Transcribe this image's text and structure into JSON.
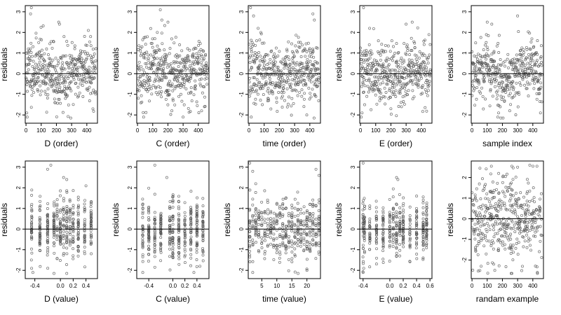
{
  "colors": {
    "points": "#555555",
    "frame": "#000000",
    "background": "#ffffff"
  },
  "chart_data": [
    {
      "type": "scatter",
      "xlabel": "D (order)",
      "ylabel": "residuals",
      "xlim": [
        -5,
        470
      ],
      "ylim": [
        -2.4,
        3.3
      ],
      "xticks": [
        0,
        100,
        200,
        300,
        400
      ],
      "yticks": [
        -2,
        -1,
        0,
        1,
        2,
        3
      ],
      "hline": 0,
      "seed": 11,
      "mode": "order",
      "curve": 0.35,
      "spread": 0.75,
      "outliers": [
        [
          5,
          -1.9
        ],
        [
          8,
          -2.1
        ],
        [
          30,
          2.9
        ],
        [
          35,
          3.2
        ],
        [
          215,
          2.5
        ],
        [
          220,
          2.4
        ],
        [
          250,
          1.8
        ],
        [
          410,
          2.1
        ],
        [
          425,
          1.8
        ]
      ]
    },
    {
      "type": "scatter",
      "xlabel": "C (order)",
      "ylabel": "residuals",
      "xlim": [
        -5,
        470
      ],
      "ylim": [
        -2.4,
        3.3
      ],
      "xticks": [
        0,
        100,
        200,
        300,
        400
      ],
      "yticks": [
        -2,
        -1,
        0,
        1,
        2,
        3
      ],
      "hline": 0,
      "seed": 23,
      "mode": "order",
      "curve": 0.2,
      "spread": 0.75,
      "outliers": [
        [
          40,
          -2.1
        ],
        [
          150,
          3.1
        ],
        [
          160,
          2.6
        ],
        [
          200,
          2.5
        ],
        [
          300,
          -2.1
        ],
        [
          440,
          -1.6
        ],
        [
          130,
          2.0
        ]
      ]
    },
    {
      "type": "scatter",
      "xlabel": "time (order)",
      "ylabel": "residuals",
      "xlim": [
        -5,
        470
      ],
      "ylim": [
        -2.4,
        3.3
      ],
      "xticks": [
        0,
        100,
        200,
        300,
        400
      ],
      "yticks": [
        -2,
        -1,
        0,
        1,
        2,
        3
      ],
      "hline": 0,
      "seed": 37,
      "mode": "order",
      "curve": 0.15,
      "spread": 0.75,
      "outliers": [
        [
          10,
          3.2
        ],
        [
          30,
          2.8
        ],
        [
          60,
          2.2
        ],
        [
          420,
          2.9
        ],
        [
          430,
          2.6
        ],
        [
          15,
          -2.1
        ],
        [
          380,
          -2.0
        ]
      ]
    },
    {
      "type": "scatter",
      "xlabel": "E (order)",
      "ylabel": "residuals",
      "xlim": [
        -5,
        470
      ],
      "ylim": [
        -2.4,
        3.3
      ],
      "xticks": [
        0,
        100,
        200,
        300,
        400
      ],
      "yticks": [
        -2,
        -1,
        0,
        1,
        2,
        3
      ],
      "hline": 0,
      "seed": 41,
      "mode": "order",
      "curve": 0.25,
      "spread": 0.75,
      "outliers": [
        [
          20,
          3.2
        ],
        [
          5,
          -2.1
        ],
        [
          10,
          -1.9
        ],
        [
          300,
          2.4
        ],
        [
          340,
          2.5
        ],
        [
          60,
          2.2
        ]
      ]
    },
    {
      "type": "scatter",
      "xlabel": "sample index",
      "ylabel": "residuals",
      "xlim": [
        -5,
        470
      ],
      "ylim": [
        -2.4,
        3.3
      ],
      "xticks": [
        0,
        100,
        200,
        300,
        400
      ],
      "yticks": [
        -2,
        -1,
        0,
        1,
        2,
        3
      ],
      "hline": 0,
      "seed": 53,
      "mode": "order",
      "curve": 0.3,
      "spread": 0.75,
      "outliers": [
        [
          100,
          2.5
        ],
        [
          130,
          2.4
        ],
        [
          170,
          -2.1
        ],
        [
          175,
          -1.9
        ],
        [
          450,
          -1.9
        ],
        [
          300,
          2.8
        ]
      ]
    },
    {
      "type": "scatter",
      "xlabel": "D (value)",
      "ylabel": "residuals",
      "xlim": [
        -0.55,
        0.58
      ],
      "ylim": [
        -2.4,
        3.3
      ],
      "xticks": [
        -0.4,
        0,
        0.2,
        0.4
      ],
      "xticklabels": [
        "-0.4",
        "0.0",
        "0.2",
        "0.4"
      ],
      "yticks": [
        -2,
        -1,
        0,
        1,
        2,
        3
      ],
      "hline": 0,
      "seed": 67,
      "mode": "discrete",
      "levels": [
        -0.45,
        -0.32,
        -0.2,
        -0.1,
        -0.05,
        0,
        0.05,
        0.1,
        0.15,
        0.2,
        0.28,
        0.38,
        0.48
      ],
      "spread": 0.7,
      "outliers": [
        [
          -0.45,
          -1.9
        ],
        [
          -0.43,
          -2.1
        ],
        [
          -0.2,
          2.9
        ],
        [
          -0.15,
          3.1
        ],
        [
          0.05,
          2.5
        ],
        [
          0.1,
          2.4
        ],
        [
          0.4,
          2.1
        ]
      ]
    },
    {
      "type": "scatter",
      "xlabel": "C (value)",
      "ylabel": "residuals",
      "xlim": [
        -0.6,
        0.6
      ],
      "ylim": [
        -2.4,
        3.3
      ],
      "xticks": [
        -0.4,
        0,
        0.2,
        0.4
      ],
      "xticklabels": [
        "-0.4",
        "0.0",
        "0.2",
        "0.4"
      ],
      "yticks": [
        -2,
        -1,
        0,
        1,
        2,
        3
      ],
      "hline": 0,
      "seed": 79,
      "mode": "discrete",
      "levels": [
        -0.5,
        -0.4,
        -0.3,
        -0.2,
        -0.05,
        0,
        0.1,
        0.2,
        0.3,
        0.4,
        0.5
      ],
      "spread": 0.75,
      "outliers": [
        [
          -0.5,
          -2.1
        ],
        [
          -0.3,
          3.1
        ],
        [
          -0.1,
          2.5
        ],
        [
          0.35,
          -2.1
        ],
        [
          0.45,
          -1.8
        ]
      ]
    },
    {
      "type": "scatter",
      "xlabel": "time (value)",
      "ylabel": "residuals",
      "xlim": [
        0.5,
        24.5
      ],
      "ylim": [
        -2.4,
        3.3
      ],
      "xticks": [
        5,
        10,
        15,
        20
      ],
      "yticks": [
        -2,
        -1,
        0,
        1,
        2,
        3
      ],
      "hline": 0,
      "seed": 83,
      "mode": "discrete",
      "levels": [
        1,
        2,
        3,
        4,
        5,
        6,
        7,
        8,
        9,
        10,
        11,
        12,
        13,
        14,
        15,
        16,
        17,
        18,
        19,
        20,
        21,
        22,
        23,
        24
      ],
      "spread": 0.75,
      "outliers": [
        [
          1,
          3.2
        ],
        [
          2,
          2.8
        ],
        [
          3,
          2.2
        ],
        [
          23,
          2.9
        ],
        [
          24,
          2.6
        ],
        [
          2,
          -2.1
        ],
        [
          20,
          -2.0
        ]
      ]
    },
    {
      "type": "scatter",
      "xlabel": "E (value)",
      "ylabel": "residuals",
      "xlim": [
        -0.45,
        0.63
      ],
      "ylim": [
        -2.4,
        3.3
      ],
      "xticks": [
        -0.4,
        0,
        0.2,
        0.4,
        0.6
      ],
      "xticklabels": [
        "-0.4",
        "0.0",
        "0.2",
        "0.4",
        "0.6"
      ],
      "yticks": [
        -2,
        -1,
        0,
        1,
        2,
        3
      ],
      "hline": 0,
      "seed": 97,
      "mode": "discrete",
      "levels": [
        -0.4,
        -0.38,
        -0.3,
        -0.2,
        -0.1,
        0,
        0.05,
        0.1,
        0.15,
        0.2,
        0.3,
        0.4,
        0.5,
        0.55
      ],
      "spread": 0.7,
      "outliers": [
        [
          -0.4,
          3.2
        ],
        [
          -0.4,
          -2.1
        ],
        [
          -0.39,
          -1.9
        ],
        [
          0.1,
          2.5
        ],
        [
          0.12,
          2.4
        ],
        [
          0.4,
          1.6
        ]
      ]
    },
    {
      "type": "scatter",
      "xlabel": "randam example",
      "ylabel": "residuals",
      "xlim": [
        -5,
        470
      ],
      "ylim": [
        -2.9,
        2.8
      ],
      "xticks": [
        0,
        100,
        200,
        300,
        400
      ],
      "yticks": [
        -2,
        -1,
        0,
        1,
        2
      ],
      "hline": 0,
      "seed": 101,
      "mode": "uniform",
      "spread": 1.05,
      "outliers": [
        [
          150,
          -2.5
        ],
        [
          300,
          2.5
        ],
        [
          380,
          2.6
        ],
        [
          60,
          -2.3
        ],
        [
          430,
          -2.6
        ]
      ]
    }
  ]
}
